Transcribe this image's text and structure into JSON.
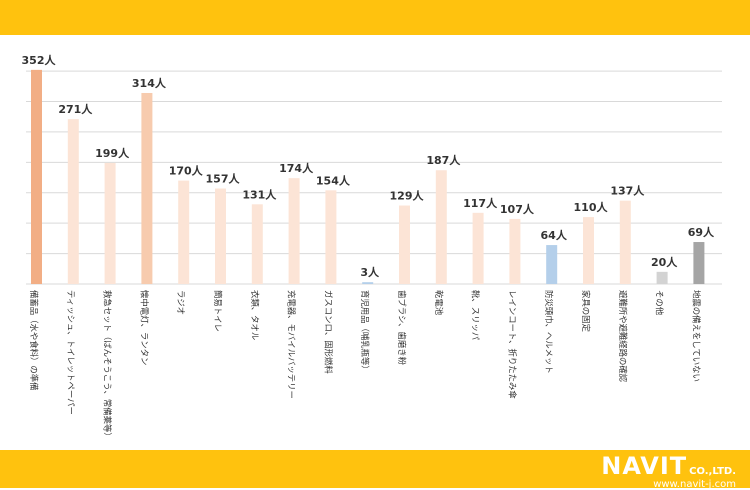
{
  "colors": {
    "band": "#FFC20E",
    "highlight": "#F2AE85",
    "top": "#F7CBAE",
    "normal": "#FCE4D6",
    "blue": "#B4CFEA",
    "other": "#D3D3D3",
    "none": "#A5A5A5",
    "grid": "#D9D9D9",
    "label": "#333333"
  },
  "logo": {
    "brand": "NAVIT",
    "company": "CO.,LTD.",
    "url": "www.navit-j.com"
  },
  "chart_data": {
    "type": "bar",
    "unit": "人",
    "ylim": [
      0,
      360
    ],
    "grid": true,
    "categories": [
      "備蓄品（水や食料）の準備",
      "ティッシュ、トイレットペーパー",
      "救急セット（ばんそうこう、常備薬等）",
      "懐中電灯、ランタン",
      "ラジオ",
      "簡易トイレ",
      "衣類、タオル",
      "充電器、モバイルバッテリー",
      "ガスコンロ、固形燃料",
      "育児用品（哺乳瓶等）",
      "歯ブラシ、歯磨き粉",
      "乾電池",
      "靴、スリッパ",
      "レインコート、折りたたみ傘",
      "防災頭巾、ヘルメット",
      "家具の固定",
      "避難所や避難経路の確認",
      "その他",
      "地震の備えをしていない"
    ],
    "values": [
      352,
      271,
      199,
      314,
      170,
      157,
      131,
      174,
      154,
      3,
      129,
      187,
      117,
      107,
      64,
      110,
      137,
      20,
      69
    ],
    "data_labels": [
      "352人",
      "271人",
      "199人",
      "314人",
      "170人",
      "157人",
      "131人",
      "174人",
      "154人",
      "3人",
      "129人",
      "187人",
      "117人",
      "107人",
      "64人",
      "110人",
      "137人",
      "20人",
      "69人"
    ],
    "bar_colors": [
      "highlight",
      "normal",
      "normal",
      "top",
      "normal",
      "normal",
      "normal",
      "normal",
      "normal",
      "blue",
      "normal",
      "normal",
      "normal",
      "normal",
      "blue",
      "normal",
      "normal",
      "other",
      "none"
    ]
  }
}
